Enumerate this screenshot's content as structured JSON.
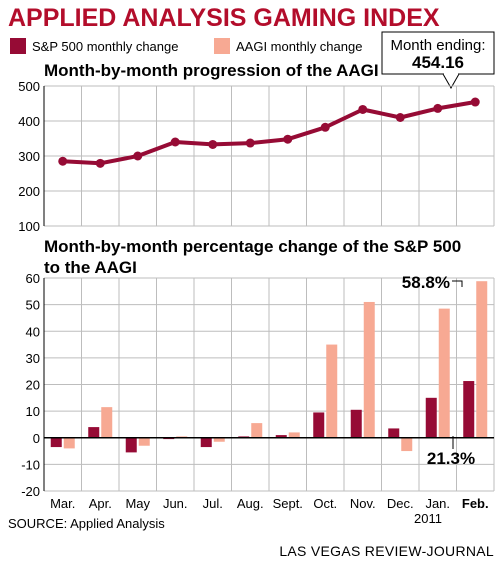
{
  "title": "APPLIED ANALYSIS GAMING INDEX",
  "legend": {
    "sp500_label": "S&P 500 monthly change",
    "aagi_label": "AAGI monthly change"
  },
  "callout": {
    "label": "Month ending:",
    "value": "454.16"
  },
  "top_chart_title": "Month-by-month progression of the AAGI",
  "bottom_chart_title_line1": "Month-by-month percentage change of the S&P 500",
  "bottom_chart_title_line2": "to the AAGI",
  "source": "SOURCE: Applied Analysis",
  "credit": "LAS VEGAS REVIEW-JOURNAL",
  "colors": {
    "accent": "#b30d2b",
    "sp500": "#960b35",
    "aagi": "#f7a993",
    "grid": "#bdbdbd"
  },
  "chart_data": [
    {
      "type": "line",
      "title": "Month-by-month progression of the AAGI",
      "categories": [
        "Mar.",
        "Apr.",
        "May",
        "Jun.",
        "Jul.",
        "Aug.",
        "Sept.",
        "Oct.",
        "Nov.",
        "Dec.",
        "Jan.",
        "Feb."
      ],
      "series": [
        {
          "values": [
            285,
            279,
            300,
            340,
            333,
            337,
            348,
            382,
            433,
            410,
            436,
            454.16
          ]
        }
      ],
      "yticks": [
        100,
        200,
        300,
        400,
        500
      ],
      "ylim": [
        100,
        500
      ],
      "grid": true,
      "annotation": {
        "label": "Month ending:",
        "value": "454.16"
      }
    },
    {
      "type": "bar",
      "title": "Month-by-month percentage change of the S&P 500 to the AAGI",
      "categories": [
        "Mar.",
        "Apr.",
        "May",
        "Jun.",
        "Jul.",
        "Aug.",
        "Sept.",
        "Oct.",
        "Nov.",
        "Dec.",
        "Jan.",
        "Feb."
      ],
      "year_label": "2011",
      "series": [
        {
          "name": "S&P 500 monthly change",
          "values": [
            -3.5,
            4.0,
            -5.5,
            -0.5,
            -3.5,
            0.5,
            1.0,
            9.5,
            10.5,
            3.5,
            15.0,
            21.3
          ]
        },
        {
          "name": "AAGI monthly change",
          "values": [
            -4.0,
            11.5,
            -3.0,
            0.5,
            -1.5,
            5.5,
            2.0,
            35.0,
            51.0,
            -5.0,
            48.5,
            58.8
          ]
        }
      ],
      "yticks": [
        -20,
        -10,
        0,
        10,
        20,
        30,
        40,
        50,
        60
      ],
      "ylim": [
        -20,
        60
      ],
      "grid": true,
      "data_labels": {
        "aagi_last": "58.8%",
        "sp500_last": "21.3%"
      },
      "legend_position": "top"
    }
  ]
}
